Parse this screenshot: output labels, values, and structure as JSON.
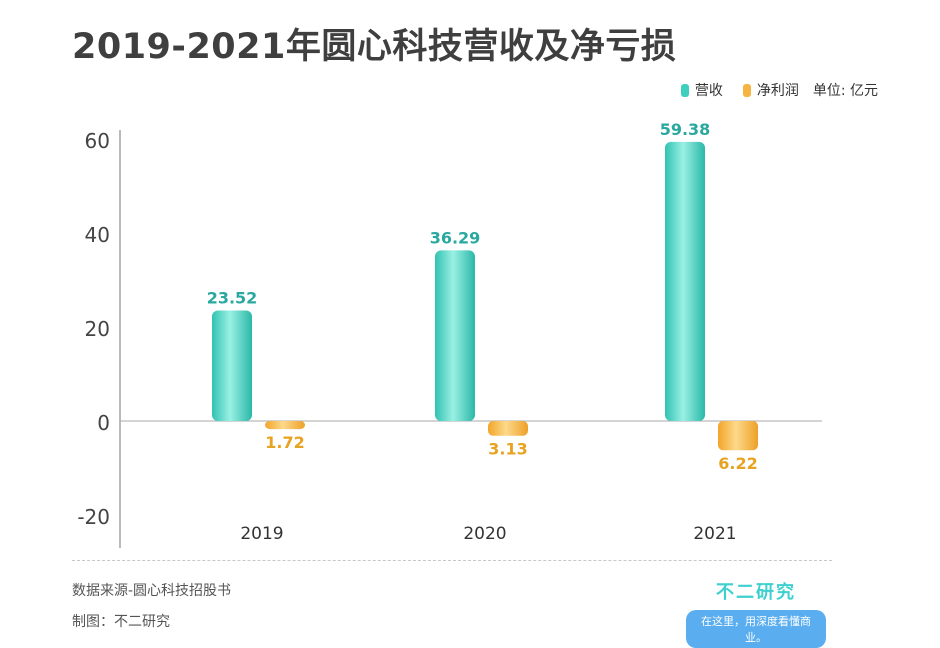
{
  "title": "2019-2021年圆心科技营收及净亏损",
  "legend": {
    "revenue": "营收",
    "net_profit": "净利润",
    "unit": "单位: 亿元"
  },
  "footer": {
    "source": "数据来源-圆心科技招股书",
    "maker": "制图：不二研究",
    "brand_name": "不二研究",
    "brand_slogan": "在这里，用深度看懂商业。"
  },
  "colors": {
    "revenue": "#3ecfbf",
    "net_profit": "#f5b342",
    "revenue_label": "#2aa8a0",
    "net_profit_label": "#e8a321"
  },
  "chart_data": {
    "type": "bar",
    "title": "2019-2021年圆心科技营收及净亏损",
    "categories": [
      "2019",
      "2020",
      "2021"
    ],
    "series": [
      {
        "name": "营收",
        "values": [
          23.52,
          36.29,
          59.38
        ],
        "labels": [
          "23.52",
          "36.29",
          "59.38"
        ]
      },
      {
        "name": "净利润",
        "values": [
          -1.72,
          -3.13,
          -6.22
        ],
        "labels": [
          "1.72",
          "3.13",
          "6.22"
        ]
      }
    ],
    "yticks": [
      60,
      40,
      20,
      0,
      -20
    ],
    "ylim": [
      -20,
      60
    ],
    "legend_position": "top-right",
    "grid": false
  }
}
